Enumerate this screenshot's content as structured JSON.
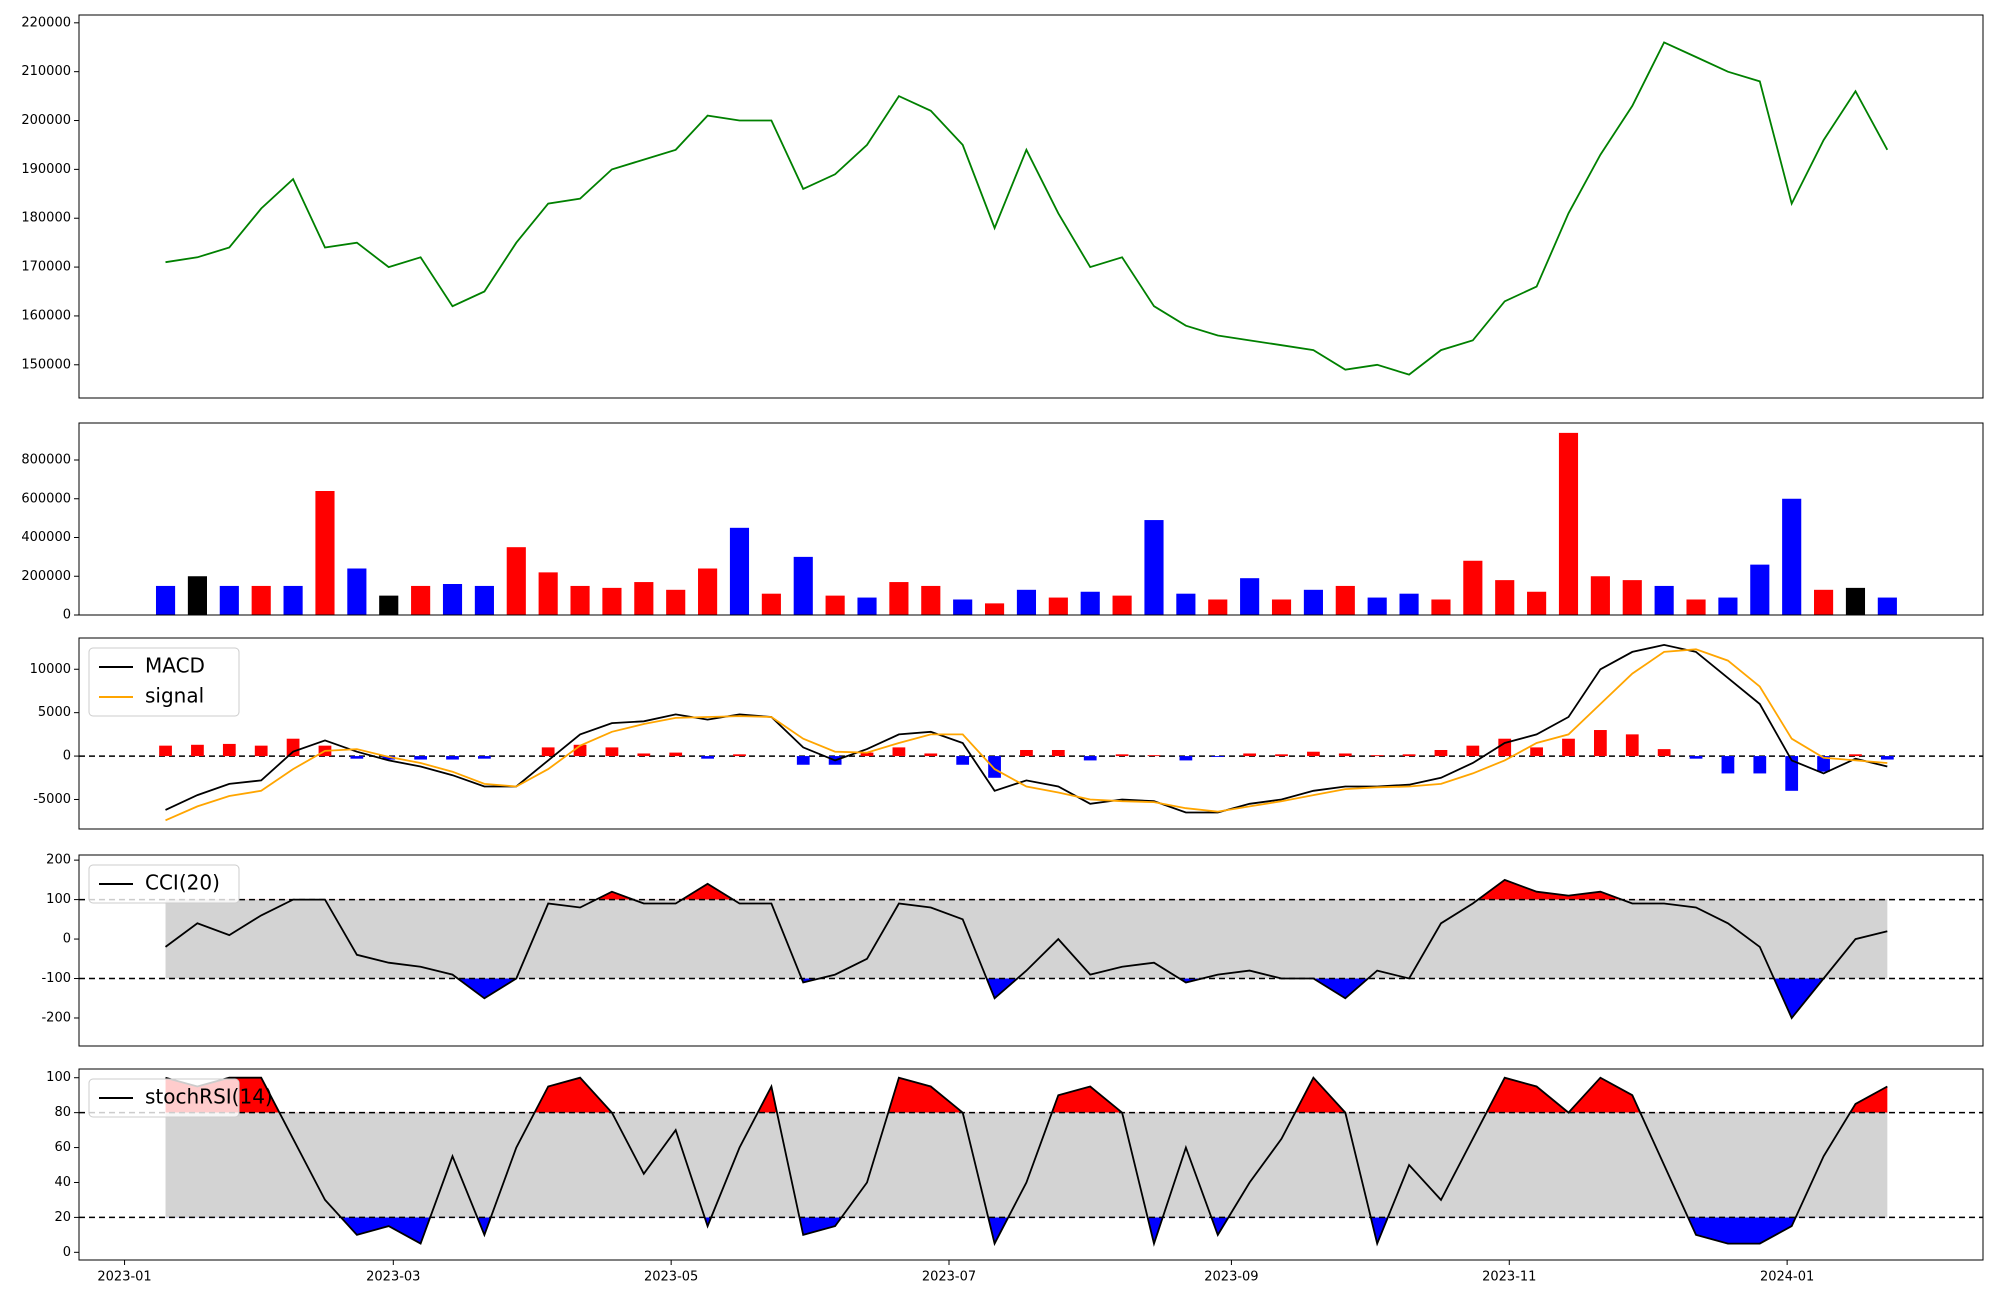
{
  "chart_data": [
    {
      "type": "line",
      "color": "#008000",
      "x": [
        19367,
        19374,
        19381,
        19388,
        19395,
        19402,
        19409,
        19416,
        19423,
        19430,
        19437,
        19444,
        19451,
        19458,
        19465,
        19472,
        19479,
        19486,
        19493,
        19500,
        19507,
        19514,
        19521,
        19528,
        19535,
        19542,
        19549,
        19556,
        19563,
        19570,
        19577,
        19584,
        19591,
        19598,
        19605,
        19612,
        19619,
        19626,
        19633,
        19640,
        19647,
        19654,
        19661,
        19668,
        19675,
        19682,
        19689,
        19696,
        19703,
        19710,
        19717,
        19724,
        19731,
        19738,
        19745
      ],
      "xlim": [
        19348,
        19766
      ],
      "values": [
        171000,
        172000,
        174000,
        182000,
        188000,
        174000,
        175000,
        170000,
        172000,
        162000,
        165000,
        175000,
        183000,
        184000,
        190000,
        192000,
        194000,
        201000,
        200000,
        200000,
        186000,
        189000,
        195000,
        205000,
        202000,
        195000,
        178000,
        194000,
        181000,
        170000,
        172000,
        162000,
        158000,
        156000,
        155000,
        154000,
        153000,
        149000,
        150000,
        148000,
        153000,
        155000,
        163000,
        166000,
        181000,
        193000,
        203000,
        216000,
        213000,
        210000,
        208000,
        183000,
        196000,
        206000,
        194000
      ],
      "ylim": [
        143200,
        221600
      ],
      "yticks": [
        150000,
        160000,
        170000,
        180000,
        190000,
        200000,
        210000,
        220000
      ]
    },
    {
      "type": "bar",
      "values": [
        150000,
        200000,
        150000,
        150000,
        150000,
        640000,
        240000,
        100000,
        150000,
        160000,
        150000,
        350000,
        220000,
        150000,
        140000,
        170000,
        130000,
        240000,
        450000,
        110000,
        300000,
        100000,
        90000,
        170000,
        150000,
        80000,
        60000,
        130000,
        90000,
        120000,
        100000,
        490000,
        110000,
        80000,
        190000,
        80000,
        130000,
        150000,
        90000,
        110000,
        80000,
        280000,
        180000,
        120000,
        940000,
        200000,
        180000,
        150000,
        80000,
        90000,
        260000,
        600000,
        130000,
        140000,
        90000
      ],
      "colors": [
        "blue",
        "black",
        "blue",
        "red",
        "blue",
        "red",
        "blue",
        "black",
        "red",
        "blue",
        "blue",
        "red",
        "red",
        "red",
        "red",
        "red",
        "red",
        "red",
        "blue",
        "red",
        "blue",
        "red",
        "blue",
        "red",
        "red",
        "blue",
        "red",
        "blue",
        "red",
        "blue",
        "red",
        "blue",
        "blue",
        "red",
        "blue",
        "red",
        "blue",
        "red",
        "blue",
        "blue",
        "red",
        "red",
        "red",
        "red",
        "red",
        "red",
        "red",
        "blue",
        "red",
        "blue",
        "blue",
        "blue",
        "red",
        "black",
        "blue"
      ],
      "ylim": [
        0,
        991000
      ],
      "yticks": [
        0,
        200000,
        400000,
        600000,
        800000
      ]
    },
    {
      "type": "line",
      "legend": "upper left",
      "zero_line": 0,
      "series": [
        {
          "name": "MACD",
          "color": "#000000",
          "values": [
            -6200,
            -4500,
            -3200,
            -2800,
            500,
            1800,
            500,
            -500,
            -1200,
            -2200,
            -3500,
            -3500,
            -500,
            2500,
            3800,
            4000,
            4800,
            4200,
            4800,
            4500,
            1000,
            -500,
            800,
            2500,
            2800,
            1500,
            -4000,
            -2800,
            -3500,
            -5500,
            -5000,
            -5200,
            -6500,
            -6500,
            -5500,
            -5000,
            -4000,
            -3500,
            -3500,
            -3300,
            -2500,
            -800,
            1500,
            2500,
            4500,
            10000,
            12000,
            12800,
            12000,
            9000,
            6000,
            -500,
            -2000,
            -300,
            -1200
          ]
        },
        {
          "name": "signal",
          "color": "orange",
          "values": [
            -7400,
            -5800,
            -4600,
            -4000,
            -1500,
            600,
            800,
            -100,
            -800,
            -1800,
            -3200,
            -3500,
            -1500,
            1200,
            2800,
            3700,
            4400,
            4500,
            4600,
            4500,
            2000,
            500,
            400,
            1500,
            2500,
            2500,
            -1500,
            -3500,
            -4200,
            -5000,
            -5200,
            -5300,
            -6000,
            -6400,
            -5800,
            -5200,
            -4500,
            -3800,
            -3600,
            -3500,
            -3200,
            -2000,
            -500,
            1500,
            2500,
            6000,
            9500,
            12000,
            12300,
            11000,
            8000,
            2000,
            -200,
            -500,
            -800
          ]
        }
      ],
      "histogram": {
        "up_color": "red",
        "down_color": "blue",
        "values": [
          1200,
          1300,
          1400,
          1200,
          2000,
          1200,
          -300,
          -400,
          -400,
          -400,
          -300,
          0,
          1000,
          1300,
          1000,
          300,
          400,
          -300,
          200,
          0,
          -1000,
          -1000,
          400,
          1000,
          300,
          -1000,
          -2500,
          700,
          700,
          -500,
          200,
          100,
          -500,
          -100,
          300,
          200,
          500,
          300,
          100,
          200,
          700,
          1200,
          2000,
          1000,
          2000,
          3000,
          2500,
          800,
          -300,
          -2000,
          -2000,
          -4000,
          -1800,
          200,
          -400
        ]
      },
      "ylim": [
        -8400,
        13600
      ],
      "yticks": [
        -5000,
        0,
        5000,
        10000
      ]
    },
    {
      "type": "line",
      "legend": "upper left",
      "series": [
        {
          "name": "CCI(20)",
          "color": "#000000",
          "values": [
            -20,
            40,
            10,
            60,
            100,
            100,
            -40,
            -60,
            -70,
            -90,
            -150,
            -100,
            90,
            80,
            120,
            90,
            90,
            140,
            90,
            90,
            -110,
            -90,
            -50,
            90,
            80,
            50,
            -150,
            -80,
            0,
            -90,
            -70,
            -60,
            -110,
            -90,
            -80,
            -100,
            -100,
            -150,
            -80,
            -100,
            40,
            90,
            150,
            120,
            110,
            120,
            90,
            90,
            80,
            40,
            -20,
            -200,
            -100,
            0,
            20
          ]
        }
      ],
      "bands": {
        "upper": 100,
        "lower": -100,
        "band_color": "lightgray",
        "above_color": "red",
        "below_color": "blue"
      },
      "ylim": [
        -271,
        213
      ],
      "yticks": [
        -200,
        -100,
        0,
        100,
        200
      ]
    },
    {
      "type": "line",
      "legend": "upper left",
      "series": [
        {
          "name": "stochRSI(14)",
          "color": "#000000",
          "values": [
            100,
            95,
            100,
            100,
            65,
            30,
            10,
            15,
            5,
            55,
            10,
            60,
            95,
            100,
            80,
            45,
            70,
            15,
            60,
            95,
            10,
            15,
            40,
            100,
            95,
            80,
            5,
            40,
            90,
            95,
            80,
            5,
            60,
            10,
            40,
            65,
            100,
            80,
            5,
            50,
            30,
            65,
            100,
            95,
            80,
            100,
            90,
            50,
            10,
            5,
            5,
            15,
            55,
            85,
            95
          ]
        }
      ],
      "bands": {
        "upper": 80,
        "lower": 20,
        "band_color": "lightgray",
        "above_color": "red",
        "below_color": "blue"
      },
      "ylim": [
        -4.4,
        105
      ],
      "yticks": [
        0,
        20,
        40,
        60,
        80,
        100
      ],
      "xticks": [
        {
          "value": 19358,
          "label": "2023-01"
        },
        {
          "value": 19417,
          "label": "2023-03"
        },
        {
          "value": 19478,
          "label": "2023-05"
        },
        {
          "value": 19539,
          "label": "2023-07"
        },
        {
          "value": 19601,
          "label": "2023-09"
        },
        {
          "value": 19662,
          "label": "2023-11"
        },
        {
          "value": 19723,
          "label": "2024-01"
        }
      ]
    }
  ]
}
